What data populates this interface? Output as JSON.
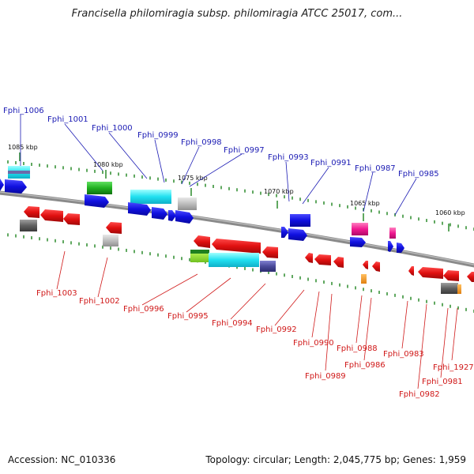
{
  "title": "Francisella philomiragia subsp. philomiragia ATCC 25017, com...",
  "footer": {
    "accession": "Accession: NC_010336",
    "topology": "Topology: circular; Length: 2,045,775 bp; Genes: 1,959"
  },
  "kbp_ticks": [
    "1085 kbp",
    "1080 kbp",
    "1075 kbp",
    "1070 kbp",
    "1065 kbp",
    "1060 kbp"
  ],
  "top_labels": [
    "Fphi_1006",
    "Fphi_1001",
    "Fphi_1000",
    "Fphi_0999",
    "Fphi_0998",
    "Fphi_0997",
    "Fphi_0993",
    "Fphi_0991",
    "Fphi_0987",
    "Fphi_0985"
  ],
  "bottom_labels": [
    "Fphi_1003",
    "Fphi_1002",
    "Fphi_0996",
    "Fphi_0995",
    "Fphi_0994",
    "Fphi_0992",
    "Fphi_0990",
    "Fphi_0989",
    "Fphi_0988",
    "Fphi_0986",
    "Fphi_0983",
    "Fphi_0982",
    "Fphi_0981",
    "Fphi_1927"
  ],
  "colors": {
    "forward_strand": "#1010e0",
    "reverse_strand": "#e01010",
    "backbone": "#8a8a8a",
    "tick": "#2a8a2a",
    "label_top": "#1c1cb4",
    "label_bottom": "#d01818"
  }
}
